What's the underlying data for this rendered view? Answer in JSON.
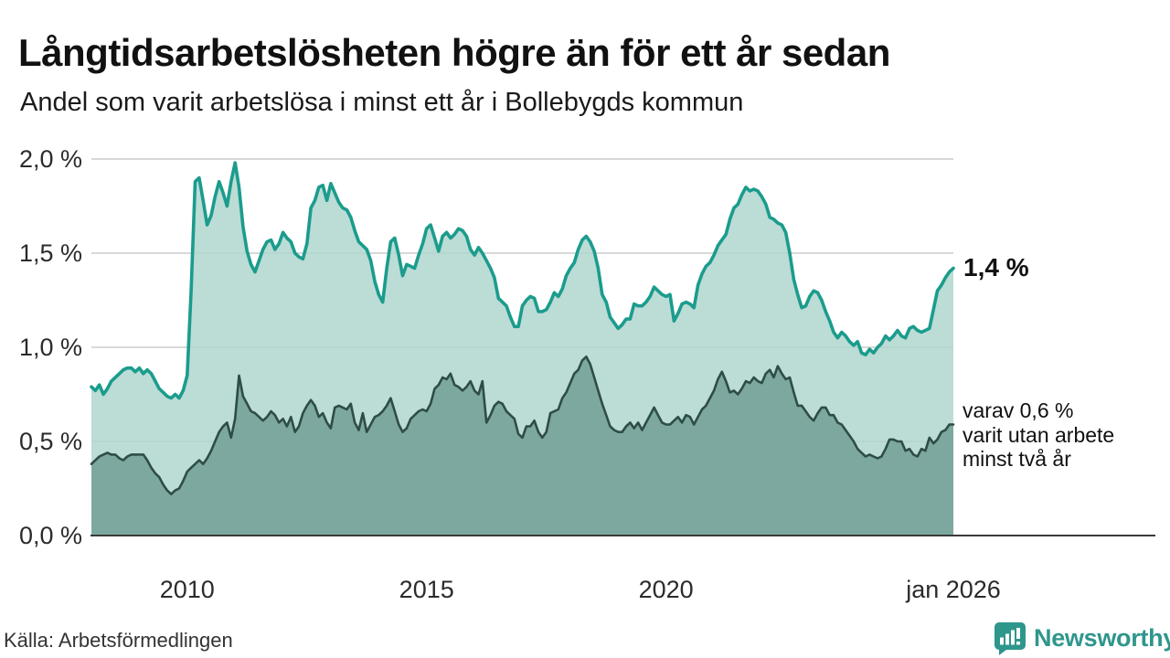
{
  "header": {
    "title": "Långtidsarbetslösheten högre än för ett år sedan",
    "subtitle": "Andel som varit arbetslösa i minst ett år i Bollebygds kommun"
  },
  "footer": {
    "source": "Källa: Arbetsförmedlingen",
    "brand": "Newsworthy"
  },
  "colors": {
    "total_line": "#1b9c8d",
    "total_fill": "#b0d6cf",
    "sub_line": "#2e4d47",
    "sub_fill": "#74a099",
    "gridline": "#cccccc",
    "baseline": "#3a3a3a",
    "brand_teal": "#2f968c"
  },
  "chart_data": {
    "type": "area",
    "title": "Långtidsarbetslösheten högre än för ett år sedan",
    "subtitle": "Andel som varit arbetslösa i minst ett år i Bollebygds kommun",
    "x_start": "2008-01",
    "x_end": "2026-01",
    "x_tick_labels": [
      "2010",
      "2015",
      "2020",
      "jan 2026"
    ],
    "x_tick_month_index": [
      24,
      84,
      144,
      216
    ],
    "y_ticks": [
      "0,0 %",
      "0,5 %",
      "1,0 %",
      "1,5 %",
      "2,0 %"
    ],
    "y_tick_values": [
      0,
      0.5,
      1.0,
      1.5,
      2.0
    ],
    "ylim": [
      0,
      2.0
    ],
    "grid": "horizontal",
    "legend_position": "none",
    "end_labels": {
      "total": "1,4 %",
      "sub": [
        "varav 0,6 %",
        "varit utan arbete",
        "minst två år"
      ]
    },
    "series": [
      {
        "name": "Arbetslösa minst ett år",
        "unit": "%",
        "values": [
          0.79,
          0.77,
          0.8,
          0.75,
          0.78,
          0.82,
          0.84,
          0.86,
          0.88,
          0.89,
          0.89,
          0.87,
          0.89,
          0.86,
          0.88,
          0.86,
          0.82,
          0.78,
          0.76,
          0.74,
          0.73,
          0.75,
          0.73,
          0.77,
          0.85,
          1.3,
          1.88,
          1.9,
          1.78,
          1.65,
          1.7,
          1.8,
          1.88,
          1.82,
          1.75,
          1.88,
          1.98,
          1.85,
          1.64,
          1.51,
          1.44,
          1.4,
          1.46,
          1.52,
          1.56,
          1.57,
          1.52,
          1.55,
          1.61,
          1.58,
          1.56,
          1.5,
          1.48,
          1.47,
          1.55,
          1.74,
          1.78,
          1.85,
          1.86,
          1.78,
          1.87,
          1.82,
          1.77,
          1.74,
          1.73,
          1.69,
          1.62,
          1.56,
          1.54,
          1.52,
          1.46,
          1.35,
          1.28,
          1.24,
          1.42,
          1.56,
          1.58,
          1.49,
          1.38,
          1.44,
          1.43,
          1.42,
          1.49,
          1.55,
          1.63,
          1.65,
          1.58,
          1.51,
          1.59,
          1.61,
          1.58,
          1.6,
          1.63,
          1.62,
          1.59,
          1.52,
          1.49,
          1.53,
          1.5,
          1.46,
          1.42,
          1.37,
          1.26,
          1.24,
          1.22,
          1.16,
          1.11,
          1.11,
          1.22,
          1.25,
          1.27,
          1.26,
          1.19,
          1.19,
          1.2,
          1.24,
          1.29,
          1.27,
          1.31,
          1.38,
          1.42,
          1.45,
          1.52,
          1.57,
          1.59,
          1.56,
          1.51,
          1.42,
          1.28,
          1.24,
          1.16,
          1.13,
          1.1,
          1.12,
          1.15,
          1.15,
          1.23,
          1.22,
          1.22,
          1.24,
          1.27,
          1.32,
          1.3,
          1.28,
          1.27,
          1.28,
          1.14,
          1.18,
          1.23,
          1.24,
          1.23,
          1.21,
          1.33,
          1.39,
          1.43,
          1.45,
          1.49,
          1.54,
          1.57,
          1.6,
          1.68,
          1.74,
          1.76,
          1.81,
          1.85,
          1.83,
          1.84,
          1.83,
          1.8,
          1.76,
          1.69,
          1.68,
          1.66,
          1.65,
          1.61,
          1.5,
          1.36,
          1.28,
          1.21,
          1.22,
          1.27,
          1.3,
          1.29,
          1.25,
          1.19,
          1.14,
          1.08,
          1.05,
          1.08,
          1.06,
          1.03,
          1.01,
          1.03,
          0.97,
          0.96,
          0.99,
          0.97,
          1.0,
          1.02,
          1.06,
          1.04,
          1.06,
          1.09,
          1.06,
          1.05,
          1.1,
          1.11,
          1.09,
          1.08,
          1.09,
          1.1,
          1.2,
          1.3,
          1.33,
          1.37,
          1.4,
          1.42
        ]
      },
      {
        "name": "Arbetslösa minst två år",
        "unit": "%",
        "values": [
          0.38,
          0.4,
          0.42,
          0.43,
          0.44,
          0.43,
          0.43,
          0.41,
          0.4,
          0.42,
          0.43,
          0.43,
          0.43,
          0.43,
          0.4,
          0.36,
          0.33,
          0.31,
          0.27,
          0.24,
          0.22,
          0.24,
          0.25,
          0.29,
          0.34,
          0.36,
          0.38,
          0.4,
          0.38,
          0.41,
          0.45,
          0.5,
          0.55,
          0.58,
          0.6,
          0.52,
          0.62,
          0.85,
          0.74,
          0.7,
          0.66,
          0.65,
          0.63,
          0.61,
          0.63,
          0.66,
          0.64,
          0.6,
          0.62,
          0.58,
          0.63,
          0.55,
          0.58,
          0.65,
          0.69,
          0.72,
          0.69,
          0.63,
          0.65,
          0.6,
          0.57,
          0.68,
          0.69,
          0.68,
          0.67,
          0.7,
          0.6,
          0.56,
          0.65,
          0.55,
          0.59,
          0.63,
          0.64,
          0.66,
          0.69,
          0.73,
          0.66,
          0.59,
          0.55,
          0.57,
          0.62,
          0.64,
          0.66,
          0.67,
          0.66,
          0.7,
          0.78,
          0.8,
          0.84,
          0.83,
          0.86,
          0.8,
          0.79,
          0.77,
          0.79,
          0.82,
          0.77,
          0.75,
          0.82,
          0.6,
          0.64,
          0.69,
          0.71,
          0.7,
          0.66,
          0.64,
          0.62,
          0.54,
          0.52,
          0.58,
          0.58,
          0.61,
          0.55,
          0.52,
          0.55,
          0.65,
          0.66,
          0.67,
          0.73,
          0.76,
          0.81,
          0.86,
          0.88,
          0.93,
          0.95,
          0.91,
          0.84,
          0.77,
          0.7,
          0.64,
          0.58,
          0.56,
          0.55,
          0.55,
          0.58,
          0.6,
          0.57,
          0.6,
          0.56,
          0.6,
          0.64,
          0.68,
          0.64,
          0.6,
          0.59,
          0.59,
          0.61,
          0.63,
          0.6,
          0.64,
          0.63,
          0.59,
          0.63,
          0.67,
          0.69,
          0.73,
          0.77,
          0.83,
          0.87,
          0.82,
          0.76,
          0.77,
          0.75,
          0.78,
          0.82,
          0.81,
          0.84,
          0.82,
          0.81,
          0.86,
          0.88,
          0.84,
          0.9,
          0.86,
          0.83,
          0.84,
          0.76,
          0.69,
          0.69,
          0.66,
          0.63,
          0.61,
          0.65,
          0.68,
          0.68,
          0.64,
          0.64,
          0.6,
          0.59,
          0.56,
          0.53,
          0.5,
          0.46,
          0.44,
          0.42,
          0.43,
          0.42,
          0.41,
          0.42,
          0.46,
          0.51,
          0.51,
          0.5,
          0.5,
          0.45,
          0.46,
          0.43,
          0.42,
          0.46,
          0.45,
          0.52,
          0.49,
          0.51,
          0.55,
          0.56,
          0.59,
          0.59
        ]
      }
    ]
  }
}
